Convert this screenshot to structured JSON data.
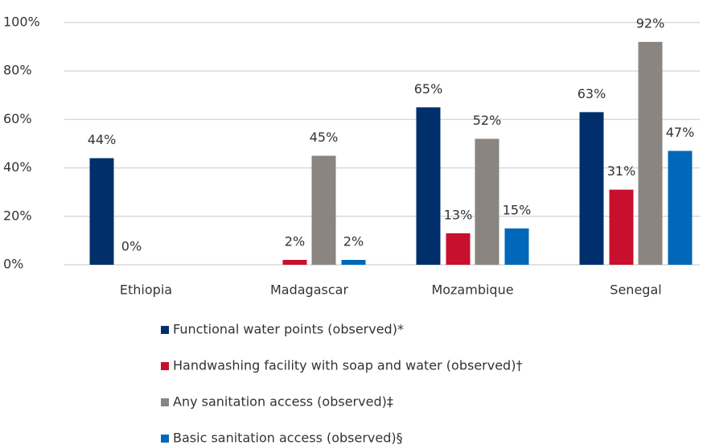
{
  "chart_data": {
    "type": "bar",
    "categories": [
      "Ethiopia",
      "Madagascar",
      "Mozambique",
      "Senegal"
    ],
    "series": [
      {
        "name": "Functional water points (observed)*",
        "color": "#002f6c",
        "values": [
          44,
          null,
          65,
          63
        ],
        "value_labels": [
          "44%",
          null,
          "65%",
          "63%"
        ]
      },
      {
        "name": "Handwashing facility with soap and water (observed)†",
        "color": "#c8102e",
        "values": [
          0,
          2,
          13,
          31
        ],
        "value_labels": [
          "0%",
          "2%",
          "13%",
          "31%"
        ]
      },
      {
        "name": "Any sanitation access (observed)‡",
        "color": "#8a8580",
        "values": [
          null,
          45,
          52,
          92
        ],
        "value_labels": [
          null,
          "45%",
          "52%",
          "92%"
        ]
      },
      {
        "name": "Basic sanitation access (observed)§",
        "color": "#0067b9",
        "values": [
          null,
          2,
          15,
          47
        ],
        "value_labels": [
          null,
          "2%",
          "15%",
          "47%"
        ]
      }
    ],
    "ylim": [
      0,
      100
    ],
    "yticks": [
      {
        "value": 0,
        "label": "0%"
      },
      {
        "value": 20,
        "label": "20%"
      },
      {
        "value": 40,
        "label": "40%"
      },
      {
        "value": 60,
        "label": "60%"
      },
      {
        "value": 80,
        "label": "80%"
      },
      {
        "value": 100,
        "label": "100%"
      }
    ],
    "grid": true,
    "legend": "bottom"
  }
}
